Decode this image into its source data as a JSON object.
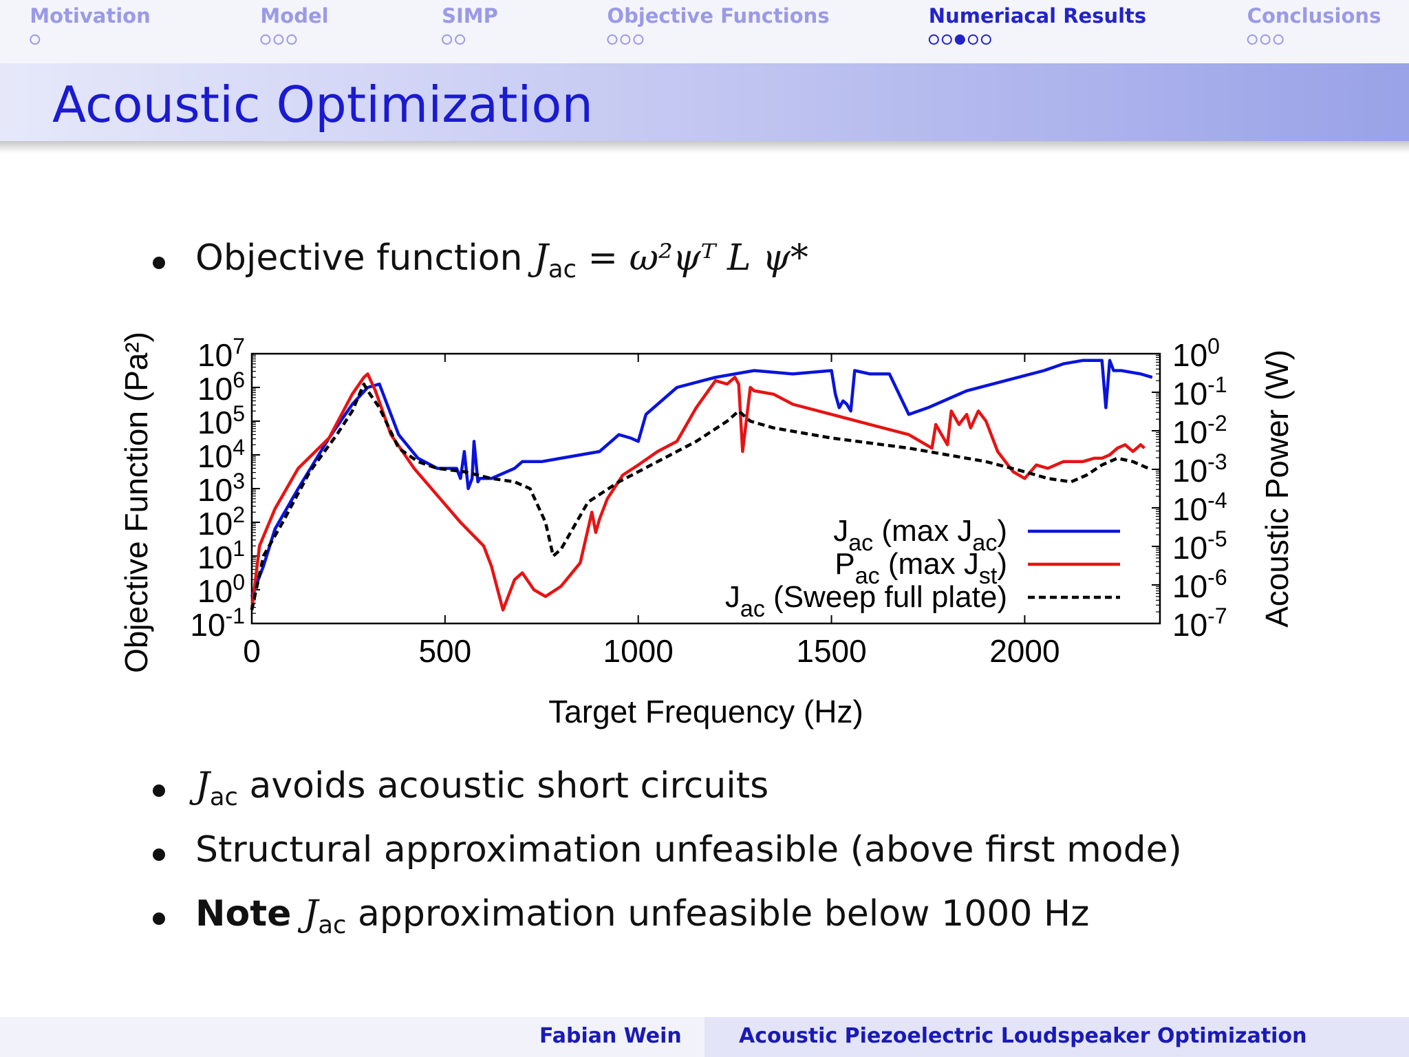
{
  "nav": [
    {
      "label": "Motivation",
      "dots": 1,
      "filled": -1,
      "current": false,
      "x": 131
    },
    {
      "label": "Model",
      "dots": 3,
      "filled": -1,
      "current": false,
      "x": 428
    },
    {
      "label": "SIMP",
      "dots": 2,
      "filled": -1,
      "current": false,
      "x": 683
    },
    {
      "label": "Objective Functions",
      "dots": 3,
      "filled": -1,
      "current": false,
      "x": 1044
    },
    {
      "label": "Numeriacal Results",
      "dots": 5,
      "filled": 2,
      "current": true,
      "x": 1508
    },
    {
      "label": "Conclusions",
      "dots": 3,
      "filled": -1,
      "current": false,
      "x": 1910
    }
  ],
  "title": "Acoustic Optimization",
  "bullet1": {
    "prefix": "Objective function ",
    "formula": "J",
    "sub": "ac",
    "rest": " = ω²ψᵀ L ψ*"
  },
  "bullets": [
    {
      "lead": "",
      "J": "J",
      "sub": "ac",
      "text": " avoids acoustic short circuits"
    },
    {
      "lead": "",
      "J": "",
      "sub": "",
      "text": "Structural approximation unfeasible (above first mode)"
    },
    {
      "lead": "Note ",
      "J": "J",
      "sub": "ac",
      "text": " approximation unfeasible below 1000 Hz"
    }
  ],
  "footer": {
    "author": "Fabian Wein",
    "talk": "Acoustic Piezoelectric Loudspeaker Optimization"
  },
  "chart_data": {
    "type": "line",
    "xlabel": "Target Frequency (Hz)",
    "ylabel": "Objective Function (Pa²)",
    "y2label": "Acoustic Power (W)",
    "xlim": [
      0,
      2350
    ],
    "xticks": [
      0,
      500,
      1000,
      1500,
      2000
    ],
    "ylim_log10": [
      -1,
      7
    ],
    "y2lim_log10": [
      -7,
      0
    ],
    "yticks": [
      "10-1",
      "100",
      "101",
      "102",
      "103",
      "104",
      "105",
      "106",
      "107"
    ],
    "y2ticks": [
      "10-7",
      "10-6",
      "10-5",
      "10-4",
      "10-3",
      "10-2",
      "10-1",
      "100"
    ],
    "legend_position": "bottom-right",
    "series": [
      {
        "name": "Jac (max Jac)",
        "color": "#0a14dc",
        "style": "solid",
        "axis": "left",
        "x": [
          0,
          30,
          60,
          120,
          200,
          260,
          300,
          330,
          380,
          430,
          480,
          530,
          540,
          550,
          560,
          570,
          575,
          585,
          590,
          620,
          680,
          700,
          750,
          800,
          900,
          950,
          980,
          1000,
          1020,
          1100,
          1200,
          1300,
          1400,
          1500,
          1510,
          1520,
          1530,
          1540,
          1550,
          1560,
          1600,
          1610,
          1620,
          1650,
          1700,
          1750,
          1850,
          1950,
          2050,
          2100,
          2150,
          2180,
          2200,
          2210,
          2220,
          2230,
          2250,
          2300,
          2330
        ],
        "y": [
          -0.2,
          0.7,
          1.8,
          3,
          4.5,
          5.5,
          6,
          6.1,
          4.6,
          3.9,
          3.6,
          3.6,
          3.3,
          4.1,
          3.0,
          3.3,
          4.4,
          3.2,
          3.3,
          3.3,
          3.6,
          3.8,
          3.8,
          3.9,
          4.1,
          4.6,
          4.5,
          4.4,
          5.2,
          6.0,
          6.3,
          6.5,
          6.4,
          6.5,
          5.8,
          5.4,
          5.6,
          5.5,
          5.3,
          6.5,
          6.4,
          6.4,
          6.4,
          6.4,
          5.2,
          5.4,
          5.9,
          6.2,
          6.5,
          6.7,
          6.8,
          6.8,
          6.8,
          5.4,
          6.8,
          6.5,
          6.5,
          6.4,
          6.3
        ]
      },
      {
        "name": "Pac (max Jst)",
        "color": "#e61414",
        "style": "solid",
        "axis": "left",
        "x": [
          0,
          20,
          60,
          120,
          200,
          260,
          290,
          300,
          320,
          360,
          420,
          480,
          540,
          600,
          620,
          650,
          680,
          700,
          730,
          760,
          800,
          850,
          880,
          890,
          900,
          920,
          960,
          1000,
          1050,
          1100,
          1150,
          1200,
          1230,
          1250,
          1260,
          1270,
          1290,
          1300,
          1350,
          1400,
          1500,
          1600,
          1700,
          1760,
          1770,
          1780,
          1800,
          1810,
          1830,
          1850,
          1860,
          1880,
          1900,
          1930,
          1970,
          2000,
          2030,
          2060,
          2100,
          2150,
          2180,
          2200,
          2220,
          2240,
          2260,
          2280,
          2300,
          2310
        ],
        "y": [
          -0.6,
          1.3,
          2.4,
          3.6,
          4.5,
          5.8,
          6.3,
          6.4,
          5.9,
          4.6,
          3.6,
          2.8,
          2.0,
          1.3,
          0.7,
          -0.6,
          0.3,
          0.5,
          0.0,
          -0.2,
          0.1,
          0.8,
          2.3,
          1.7,
          2.1,
          2.7,
          3.4,
          3.7,
          4.1,
          4.4,
          5.4,
          6.2,
          6.1,
          6.3,
          6.1,
          4.1,
          6.0,
          5.9,
          5.8,
          5.5,
          5.2,
          4.9,
          4.6,
          4.2,
          4.9,
          4.7,
          4.3,
          5.3,
          4.9,
          5.2,
          4.8,
          5.3,
          5.0,
          4.1,
          3.5,
          3.3,
          3.7,
          3.6,
          3.8,
          3.8,
          3.9,
          3.9,
          4.0,
          4.2,
          4.3,
          4.1,
          4.3,
          4.2
        ]
      },
      {
        "name": "Jac (Sweep full plate)",
        "color": "#000000",
        "style": "dashed",
        "axis": "left",
        "x": [
          0,
          30,
          80,
          150,
          220,
          260,
          290,
          300,
          330,
          380,
          430,
          480,
          550,
          620,
          680,
          720,
          760,
          780,
          800,
          820,
          870,
          950,
          1050,
          1150,
          1230,
          1260,
          1290,
          1350,
          1500,
          1700,
          1800,
          1900,
          2000,
          2060,
          2120,
          2160,
          2200,
          2240,
          2280,
          2300,
          2320
        ],
        "y": [
          -0.6,
          1.0,
          2.0,
          3.5,
          4.6,
          5.3,
          6.1,
          5.9,
          5.4,
          4.2,
          3.8,
          3.6,
          3.5,
          3.3,
          3.2,
          3.0,
          2.0,
          1.0,
          1.2,
          1.6,
          2.6,
          3.2,
          3.8,
          4.4,
          5.0,
          5.3,
          5.0,
          4.8,
          4.5,
          4.2,
          4.0,
          3.8,
          3.5,
          3.3,
          3.2,
          3.4,
          3.7,
          3.9,
          3.8,
          3.7,
          3.6
        ]
      }
    ]
  }
}
